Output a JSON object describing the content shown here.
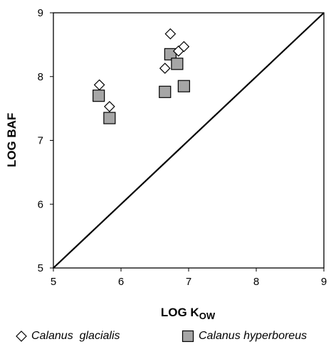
{
  "chart_data": {
    "type": "scatter",
    "xlabel_main": "LOG K",
    "xlabel_sub": "OW",
    "ylabel": "LOG BAF",
    "xlim": [
      5,
      9
    ],
    "ylim": [
      5,
      9
    ],
    "xticks": [
      "5",
      "6",
      "7",
      "8",
      "9"
    ],
    "yticks": [
      "5",
      "6",
      "7",
      "8",
      "9"
    ],
    "grid": false,
    "reference_line": {
      "from": [
        5,
        5
      ],
      "to": [
        9,
        9
      ]
    },
    "legend_position": "bottom",
    "series": [
      {
        "name": "Calanus  glacialis",
        "marker": "diamond",
        "color": "#ffffff",
        "points": [
          [
            5.68,
            7.87
          ],
          [
            5.83,
            7.53
          ],
          [
            6.65,
            8.13
          ],
          [
            6.73,
            8.67
          ],
          [
            6.85,
            8.4
          ],
          [
            6.93,
            8.47
          ]
        ]
      },
      {
        "name": "Calanus hyperboreus",
        "marker": "square",
        "color": "#a6a6a6",
        "points": [
          [
            5.67,
            7.7
          ],
          [
            5.83,
            7.35
          ],
          [
            6.65,
            7.76
          ],
          [
            6.73,
            8.35
          ],
          [
            6.83,
            8.2
          ],
          [
            6.93,
            7.85
          ]
        ]
      }
    ]
  }
}
